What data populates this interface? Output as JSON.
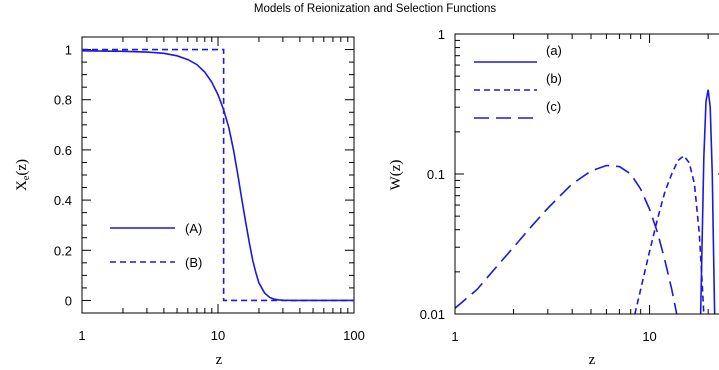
{
  "figure_title": "Models of Reionization and Selection Functions",
  "accent_color": "#1a1adc",
  "chart_data": [
    {
      "type": "line",
      "xscale": "log",
      "yscale": "linear",
      "xlim": [
        1,
        100
      ],
      "ylim": [
        -0.05,
        1.05
      ],
      "xlabel": "z",
      "ylabel_main": "X",
      "ylabel_sub": "e",
      "ylabel_arg": "(z)",
      "xticks": [
        1,
        10,
        100
      ],
      "xtick_labels": [
        "1",
        "10",
        "100"
      ],
      "yticks": [
        0,
        0.2,
        0.4,
        0.6,
        0.8,
        1
      ],
      "ytick_labels": [
        "0",
        "0.2",
        "0.4",
        "0.6",
        "0.8",
        "1"
      ],
      "legend_position": "lower-left",
      "series": [
        {
          "name": "(A)",
          "style": "solid",
          "x": [
            1,
            2,
            3,
            4,
            5,
            6,
            7,
            8,
            9,
            10,
            11,
            12,
            13,
            14,
            15,
            16,
            17,
            18,
            19,
            20,
            22,
            24,
            26,
            28,
            30,
            35,
            40,
            50,
            70,
            100
          ],
          "y": [
            0.995,
            0.993,
            0.99,
            0.985,
            0.975,
            0.96,
            0.94,
            0.91,
            0.87,
            0.82,
            0.76,
            0.69,
            0.6,
            0.5,
            0.4,
            0.31,
            0.23,
            0.16,
            0.11,
            0.07,
            0.03,
            0.012,
            0.005,
            0.002,
            0.001,
            0,
            0,
            0,
            0,
            0
          ]
        },
        {
          "name": "(B)",
          "style": "dashed",
          "x": [
            1,
            11,
            11,
            100
          ],
          "y": [
            1,
            1,
            0,
            0
          ]
        }
      ]
    },
    {
      "type": "line",
      "xscale": "log",
      "yscale": "log",
      "xlim": [
        1,
        25
      ],
      "ylim": [
        0.01,
        1
      ],
      "xlabel": "z",
      "ylabel": "W(z)",
      "xticks": [
        1,
        10
      ],
      "xtick_labels": [
        "1",
        "10"
      ],
      "yticks": [
        0.01,
        0.1,
        1
      ],
      "ytick_labels": [
        "0.01",
        "0.1",
        "1"
      ],
      "legend_position": "top-left",
      "series": [
        {
          "name": "(a)",
          "style": "solid",
          "x": [
            18.3,
            18.6,
            19,
            19.5,
            20,
            20.5,
            21,
            21.3,
            21.6
          ],
          "y": [
            0.01,
            0.03,
            0.13,
            0.33,
            0.4,
            0.3,
            0.1,
            0.03,
            0.01
          ]
        },
        {
          "name": "(b)",
          "style": "dashed",
          "x": [
            8.4,
            9,
            10,
            11,
            12,
            13,
            14,
            15,
            16,
            17,
            18,
            18.5,
            19
          ],
          "y": [
            0.01,
            0.015,
            0.028,
            0.048,
            0.075,
            0.1,
            0.125,
            0.135,
            0.12,
            0.085,
            0.038,
            0.02,
            0.01
          ]
        },
        {
          "name": "(c)",
          "style": "longdash",
          "x": [
            1,
            1.3,
            1.6,
            2,
            2.5,
            3,
            4,
            5,
            6,
            7,
            8,
            9,
            10,
            11,
            12,
            13,
            14
          ],
          "y": [
            0.011,
            0.015,
            0.021,
            0.03,
            0.043,
            0.057,
            0.085,
            0.105,
            0.115,
            0.113,
            0.1,
            0.078,
            0.056,
            0.038,
            0.024,
            0.015,
            0.009
          ]
        }
      ]
    }
  ]
}
